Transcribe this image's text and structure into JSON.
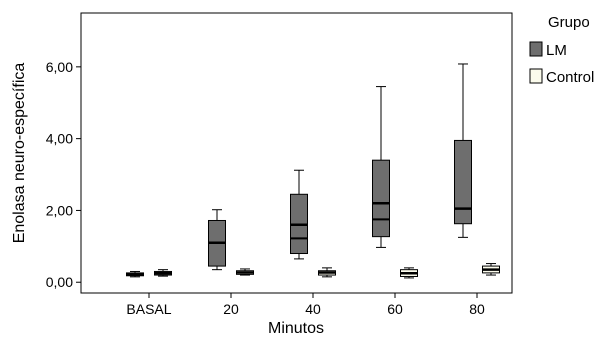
{
  "chart_data": {
    "type": "box",
    "xlabel": "Minutos",
    "ylabel": "Enolasa neuro-específica",
    "categories": [
      "BASAL",
      "20",
      "40",
      "60",
      "80"
    ],
    "ylim": [
      -0.3,
      7.5
    ],
    "yticks": [
      0,
      2,
      4,
      6
    ],
    "ytick_labels": [
      "0,00",
      "2,00",
      "4,00",
      "6,00"
    ],
    "grid": false,
    "legend": {
      "title": "Grupo",
      "placement": "top-right",
      "entries": [
        "LM",
        "Control"
      ]
    },
    "series": [
      {
        "name": "LM",
        "color": "#6e6e6e",
        "boxes": [
          {
            "min": 0.15,
            "q1": 0.18,
            "median": 0.22,
            "q3": 0.26,
            "max": 0.3
          },
          {
            "min": 0.35,
            "q1": 0.45,
            "median": 1.1,
            "q3": 1.72,
            "max": 2.02
          },
          {
            "min": 0.65,
            "q1": 0.8,
            "median": 1.6,
            "q3": 2.45,
            "max": 3.12
          },
          {
            "min": 0.97,
            "q1": 1.27,
            "median": 2.2,
            "q3": 3.4,
            "max": 5.45
          },
          {
            "min": 1.25,
            "q1": 1.63,
            "median": 2.05,
            "q3": 3.95,
            "max": 6.08
          }
        ],
        "second_lines": [
          null,
          null,
          1.22,
          1.75,
          null
        ]
      },
      {
        "name": "Control",
        "color": "#fbfbec",
        "boxes": [
          {
            "min": 0.17,
            "q1": 0.2,
            "median": 0.25,
            "q3": 0.3,
            "max": 0.35
          },
          {
            "min": 0.2,
            "q1": 0.22,
            "median": 0.27,
            "q3": 0.32,
            "max": 0.37
          },
          {
            "min": 0.15,
            "q1": 0.2,
            "median": 0.27,
            "q3": 0.32,
            "max": 0.4
          },
          {
            "min": 0.12,
            "q1": 0.16,
            "median": 0.25,
            "q3": 0.35,
            "max": 0.4
          },
          {
            "min": 0.2,
            "q1": 0.26,
            "median": 0.35,
            "q3": 0.45,
            "max": 0.52
          }
        ],
        "second_lines": [
          null,
          null,
          null,
          null,
          null
        ]
      }
    ]
  }
}
